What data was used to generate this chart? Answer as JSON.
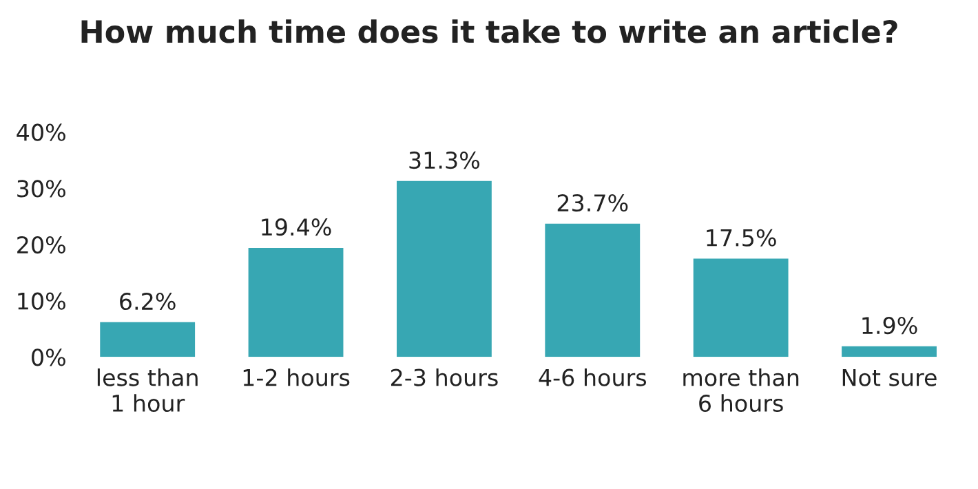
{
  "chart_data": {
    "type": "bar",
    "title": "How much time does it take to write an article?",
    "categories": [
      "less than\n1 hour",
      "1-2 hours",
      "2-3 hours",
      "4-6 hours",
      "more than\n6 hours",
      "Not sure"
    ],
    "values": [
      6.2,
      19.4,
      31.3,
      23.7,
      17.5,
      1.9
    ],
    "value_labels": [
      "6.2%",
      "19.4%",
      "31.3%",
      "23.7%",
      "17.5%",
      "1.9%"
    ],
    "color": "#37a7b3",
    "ylim": [
      0,
      40
    ],
    "yticks": [
      {
        "value": 0,
        "label": "0%"
      },
      {
        "value": 10,
        "label": "10%"
      },
      {
        "value": 20,
        "label": "20%"
      },
      {
        "value": 30,
        "label": "30%"
      },
      {
        "value": 40,
        "label": "40%"
      }
    ],
    "grid": false,
    "legend": false
  }
}
